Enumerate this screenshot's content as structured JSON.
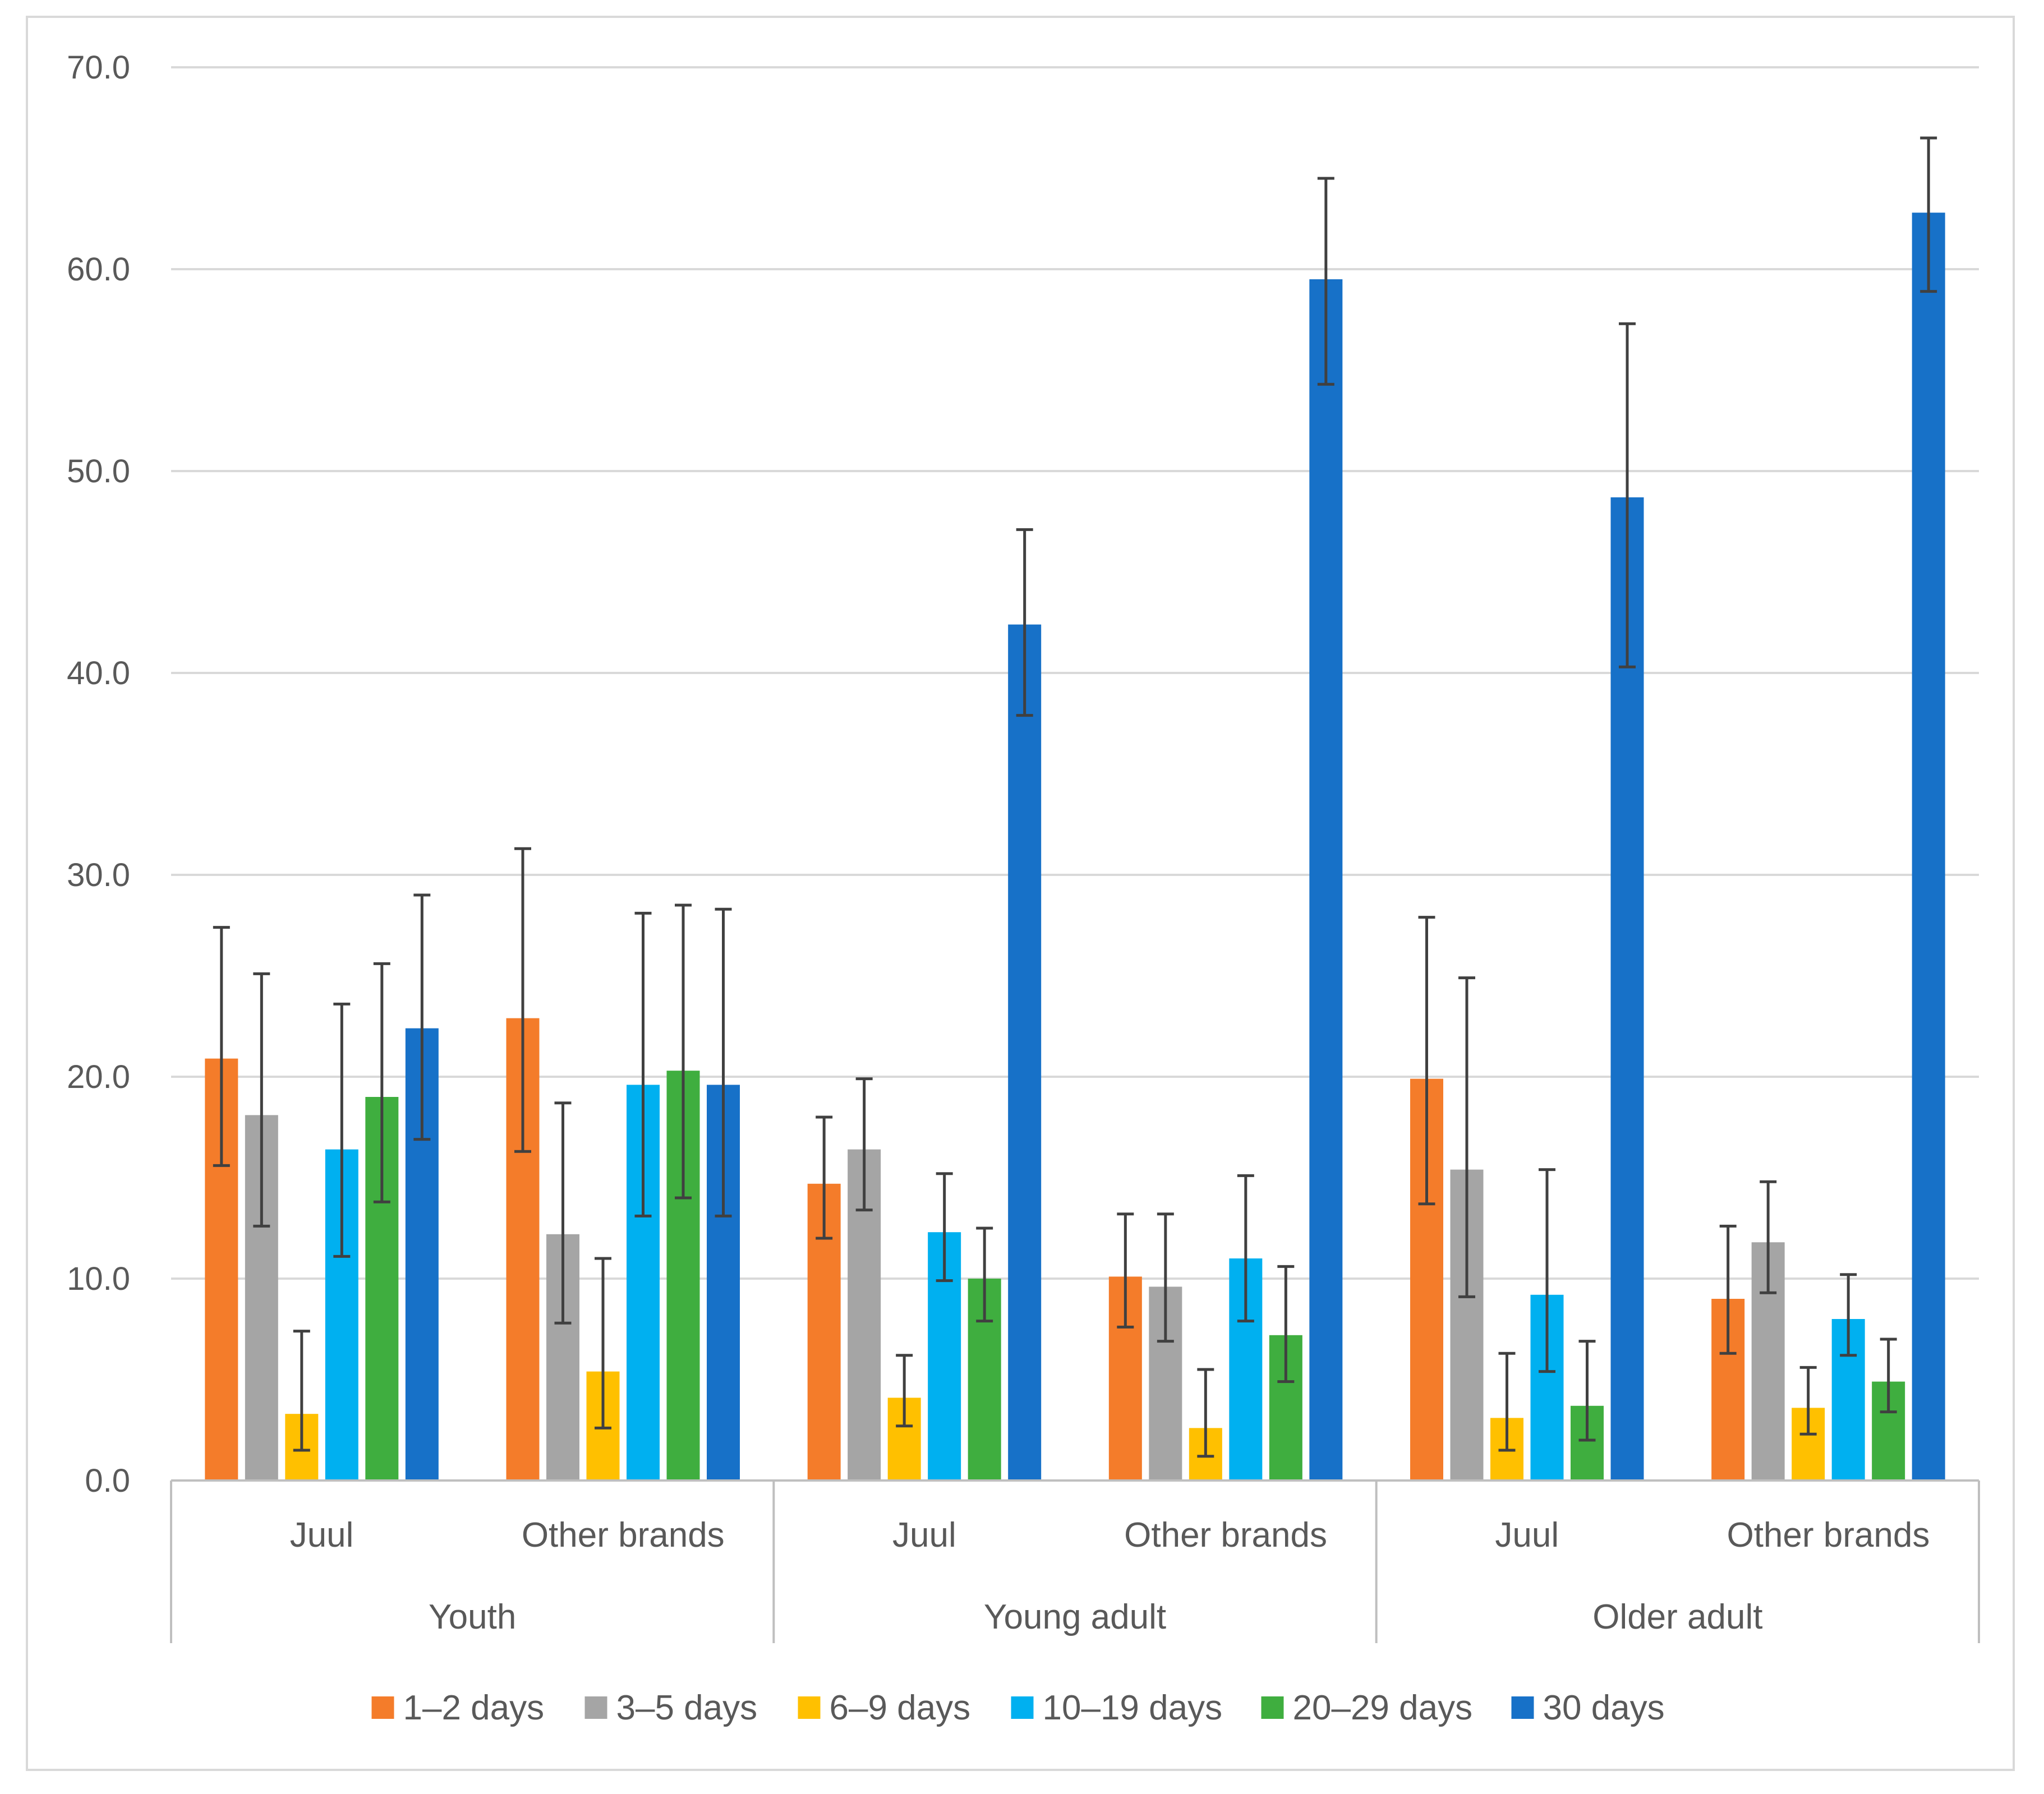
{
  "chart_data": {
    "type": "bar",
    "title": "",
    "xlabel": "",
    "ylabel": "",
    "ylim": [
      0,
      70
    ],
    "yticks": [
      "0.0",
      "10.0",
      "20.0",
      "30.0",
      "40.0",
      "50.0",
      "60.0",
      "70.0"
    ],
    "grid": true,
    "legend_position": "bottom",
    "groups": [
      {
        "name": "Youth",
        "categories": [
          "Juul",
          "Other brands"
        ]
      },
      {
        "name": "Young adult",
        "categories": [
          "Juul",
          "Other brands"
        ]
      },
      {
        "name": "Older adult",
        "categories": [
          "Juul",
          "Other brands"
        ]
      }
    ],
    "series": [
      {
        "name": "1–2 days",
        "color": "#F47C2A",
        "values": [
          20.9,
          22.9,
          14.7,
          10.1,
          19.9,
          9.0
        ],
        "err_low": [
          15.6,
          16.3,
          12.0,
          7.6,
          13.7,
          6.3
        ],
        "err_high": [
          27.4,
          31.3,
          18.0,
          13.2,
          27.9,
          12.6
        ]
      },
      {
        "name": "3–5 days",
        "color": "#A5A5A5",
        "values": [
          18.1,
          12.2,
          16.4,
          9.6,
          15.4,
          11.8
        ],
        "err_low": [
          12.6,
          7.8,
          13.4,
          6.9,
          9.1,
          9.3
        ],
        "err_high": [
          25.1,
          18.7,
          19.9,
          13.2,
          24.9,
          14.8
        ]
      },
      {
        "name": "6–9 days",
        "color": "#FFC000",
        "values": [
          3.3,
          5.4,
          4.1,
          2.6,
          3.1,
          3.6
        ],
        "err_low": [
          1.5,
          2.6,
          2.7,
          1.2,
          1.5,
          2.3
        ],
        "err_high": [
          7.4,
          11.0,
          6.2,
          5.5,
          6.3,
          5.6
        ]
      },
      {
        "name": "10–19 days",
        "color": "#00B0F0",
        "values": [
          16.4,
          19.6,
          12.3,
          11.0,
          9.2,
          8.0
        ],
        "err_low": [
          11.1,
          13.1,
          9.9,
          7.9,
          5.4,
          6.2
        ],
        "err_high": [
          23.6,
          28.1,
          15.2,
          15.1,
          15.4,
          10.2
        ]
      },
      {
        "name": "20–29 days",
        "color": "#3FAE3F",
        "values": [
          19.0,
          20.3,
          10.0,
          7.2,
          3.7,
          4.9
        ],
        "err_low": [
          13.8,
          14.0,
          7.9,
          4.9,
          2.0,
          3.4
        ],
        "err_high": [
          25.6,
          28.5,
          12.5,
          10.6,
          6.9,
          7.0
        ]
      },
      {
        "name": "30 days",
        "color": "#1771C8",
        "values": [
          22.4,
          19.6,
          42.4,
          59.5,
          48.7,
          62.8
        ],
        "err_low": [
          16.9,
          13.1,
          37.9,
          54.3,
          40.3,
          58.9
        ],
        "err_high": [
          29.0,
          28.3,
          47.1,
          64.5,
          57.3,
          66.5
        ]
      }
    ]
  },
  "colors": {
    "grid": "#d9d9d9",
    "axis": "#bfbfbf",
    "error_bar": "#404040",
    "text": "#595959"
  }
}
